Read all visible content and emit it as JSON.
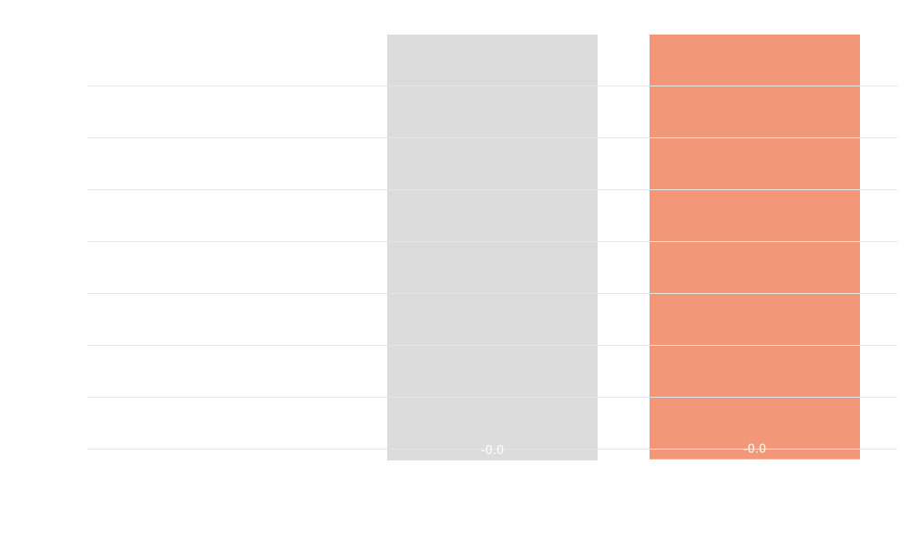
{
  "chart_data": {
    "type": "bar",
    "title": "",
    "xlabel": "",
    "ylabel": "",
    "grid": true,
    "grid_axis": "y",
    "gridline_count": 8,
    "categories": [
      "",
      "",
      ""
    ],
    "series": [
      {
        "values": [
          0,
          -0.02,
          -0.018
        ],
        "colors": [
          "#dcdcdc",
          "#dcdcdc",
          "#f29778"
        ],
        "data_labels": [
          "",
          "-0.0",
          "-0.0"
        ]
      }
    ],
    "ylim": [
      -0.03,
      0.7
    ]
  }
}
